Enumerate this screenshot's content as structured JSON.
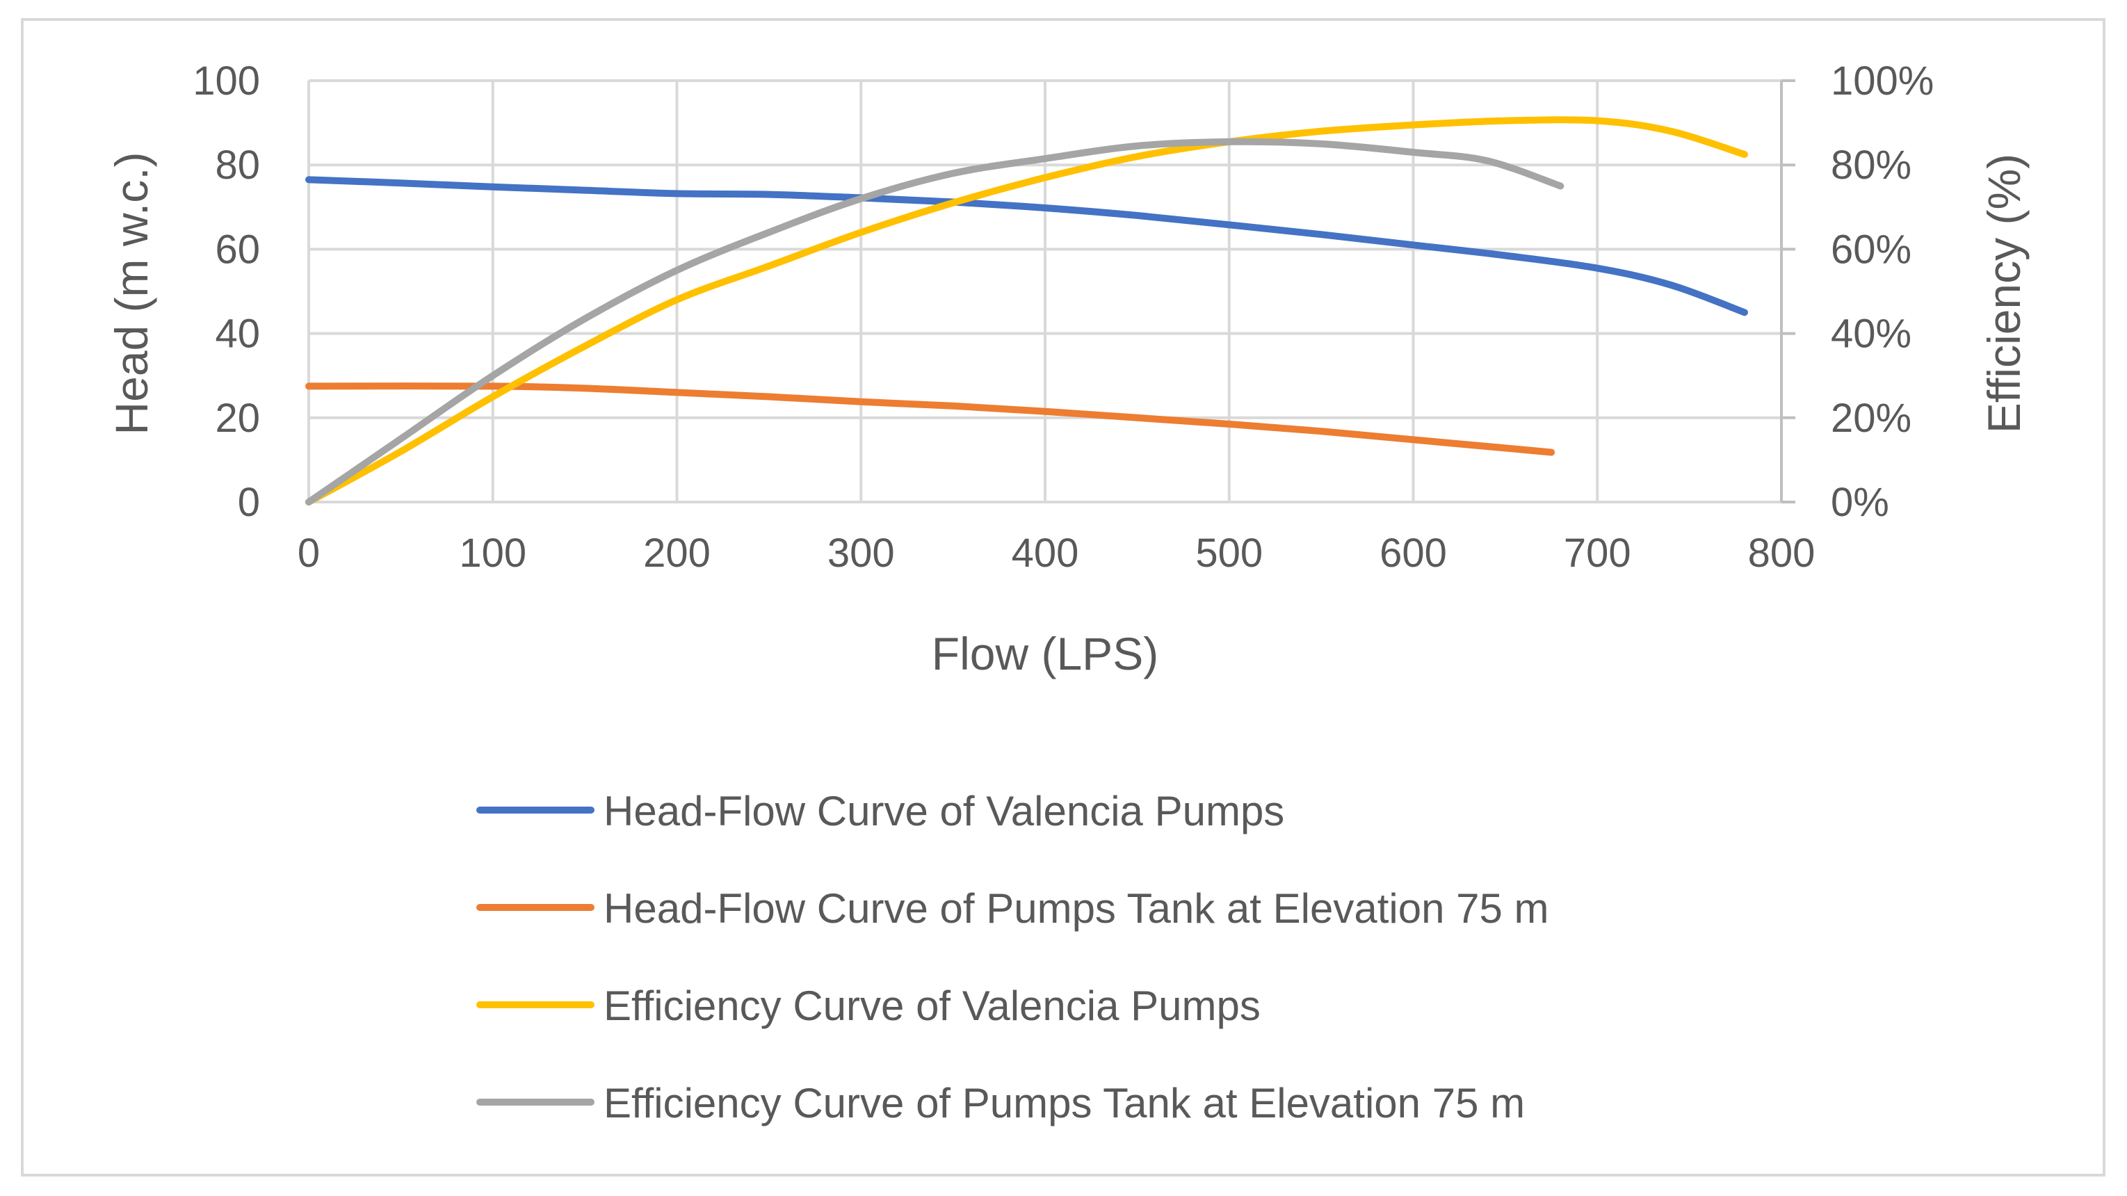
{
  "chart_data": {
    "type": "line",
    "title": "",
    "xlabel": "Flow (LPS)",
    "ylabel": "Head (m w.c.)",
    "y2label": "Efficiency (%)",
    "xlim": [
      0,
      800
    ],
    "ylim": [
      0,
      100
    ],
    "y2lim": [
      0,
      100
    ],
    "grid": true,
    "legend_position": "bottom",
    "x_ticks": [
      "0",
      "100",
      "200",
      "300",
      "400",
      "500",
      "600",
      "700",
      "800"
    ],
    "y_ticks": [
      "0",
      "20",
      "40",
      "60",
      "80",
      "100"
    ],
    "y2_ticks": [
      "0%",
      "20%",
      "40%",
      "60%",
      "80%",
      "100%"
    ],
    "series": [
      {
        "name": "Head-Flow Curve of Valencia Pumps",
        "axis": "left",
        "color": "#4472c4",
        "x": [
          0,
          50,
          100,
          150,
          200,
          250,
          300,
          350,
          400,
          450,
          500,
          550,
          600,
          650,
          700,
          740,
          780
        ],
        "y": [
          76.5,
          75.7,
          74.8,
          74,
          73.2,
          73,
          72.2,
          71.2,
          69.8,
          68,
          65.8,
          63.5,
          61,
          58.5,
          55.5,
          51.5,
          45
        ]
      },
      {
        "name": "Head-Flow Curve of Pumps Tank at Elevation 75 m",
        "axis": "left",
        "color": "#ed7d31",
        "x": [
          0,
          100,
          150,
          200,
          250,
          300,
          350,
          400,
          450,
          500,
          550,
          600,
          650,
          675
        ],
        "y": [
          27.5,
          27.5,
          27,
          26,
          25,
          23.8,
          22.8,
          21.5,
          20,
          18.5,
          16.8,
          14.8,
          12.8,
          11.8
        ]
      },
      {
        "name": "Efficiency Curve of Valencia Pumps",
        "axis": "right",
        "color": "#ffc000",
        "x": [
          0,
          50,
          100,
          150,
          200,
          250,
          300,
          350,
          400,
          450,
          500,
          550,
          600,
          650,
          700,
          740,
          780
        ],
        "y": [
          0,
          12,
          25,
          37,
          48,
          56,
          64,
          71,
          77,
          82,
          85.5,
          88,
          89.5,
          90.5,
          90.5,
          88,
          82.5
        ]
      },
      {
        "name": "Efficiency Curve of Pumps Tank at Elevation 75 m",
        "axis": "right",
        "color": "#a5a5a5",
        "x": [
          0,
          50,
          100,
          150,
          200,
          250,
          300,
          350,
          400,
          450,
          500,
          550,
          600,
          640,
          680
        ],
        "y": [
          0,
          15,
          30,
          43.5,
          55,
          64,
          72,
          78,
          81.5,
          84.5,
          85.5,
          85,
          83,
          81,
          75
        ]
      }
    ]
  }
}
